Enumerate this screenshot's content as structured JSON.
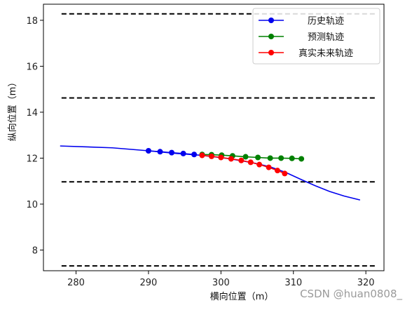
{
  "chart_data": {
    "type": "line",
    "title": "",
    "xlabel": "横向位置（m）",
    "ylabel": "纵向位置（m）",
    "xlim": [
      275.5,
      322.5
    ],
    "ylim": [
      7.1,
      18.7
    ],
    "xticks": [
      280,
      290,
      300,
      310,
      320
    ],
    "yticks": [
      8,
      10,
      12,
      14,
      16,
      18
    ],
    "grid": false,
    "legend_position": "top-right",
    "lanes": [
      {
        "x": [
          278,
          321.5
        ],
        "y": 18.28
      },
      {
        "x": [
          278,
          321.5
        ],
        "y": 14.62
      },
      {
        "x": [
          278,
          321.5
        ],
        "y": 10.97
      },
      {
        "x": [
          278,
          321.5
        ],
        "y": 7.31
      }
    ],
    "context_curve": {
      "x": [
        277.8,
        285,
        290,
        294,
        297,
        299,
        301,
        303,
        305,
        307,
        309,
        311,
        313,
        315,
        317,
        319.2
      ],
      "y": [
        12.53,
        12.45,
        12.32,
        12.2,
        12.13,
        12.06,
        11.98,
        11.88,
        11.76,
        11.6,
        11.37,
        11.08,
        10.8,
        10.55,
        10.35,
        10.18
      ]
    },
    "series": [
      {
        "name": "历史轨迹",
        "color": "#0000ee",
        "x": [
          290.0,
          291.6,
          293.2,
          294.8,
          296.3
        ],
        "y": [
          12.32,
          12.28,
          12.24,
          12.2,
          12.16
        ]
      },
      {
        "name": "预测轨迹",
        "color": "#008000",
        "x": [
          297.4,
          298.7,
          300.1,
          301.6,
          303.4,
          305.1,
          306.8,
          308.3,
          309.8,
          311.1
        ],
        "y": [
          12.16,
          12.15,
          12.13,
          12.1,
          12.06,
          12.03,
          12.0,
          12.0,
          11.99,
          11.97
        ]
      },
      {
        "name": "真实未来轨迹",
        "color": "#ff0000",
        "x": [
          297.4,
          298.7,
          300.0,
          301.4,
          302.8,
          304.1,
          305.3,
          306.6,
          307.8,
          308.8
        ],
        "y": [
          12.12,
          12.08,
          12.03,
          11.97,
          11.9,
          11.82,
          11.72,
          11.6,
          11.46,
          11.33
        ]
      }
    ]
  },
  "watermark": "CSDN @huan0808_"
}
